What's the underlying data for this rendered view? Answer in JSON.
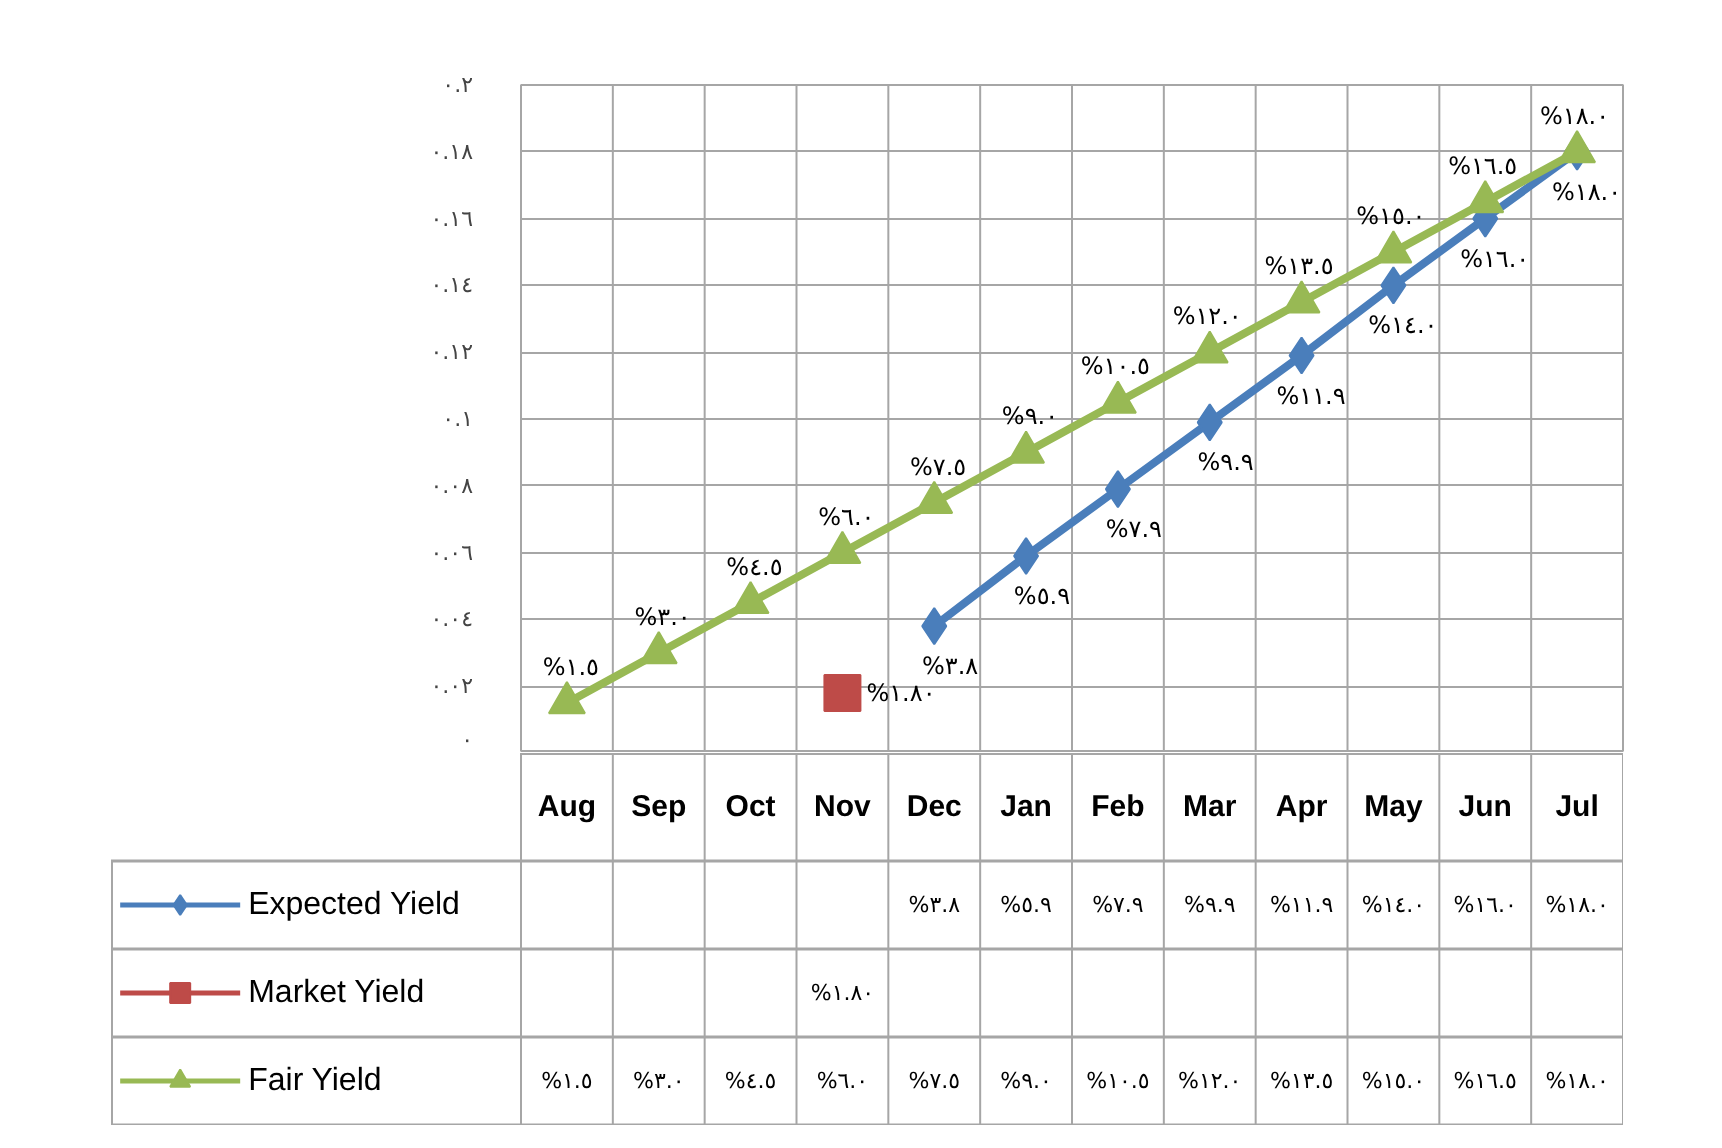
{
  "chart_data": {
    "type": "line",
    "categories": [
      "Aug",
      "Sep",
      "Oct",
      "Nov",
      "Dec",
      "Jan",
      "Feb",
      "Mar",
      "Apr",
      "May",
      "Jun",
      "Jul"
    ],
    "ylim": [
      0,
      0.2
    ],
    "yticks": [
      {
        "value": 0,
        "label": "٠"
      },
      {
        "value": 0.02,
        "label": "٠.٠٢"
      },
      {
        "value": 0.04,
        "label": "٠.٠٤"
      },
      {
        "value": 0.06,
        "label": "٠.٠٦"
      },
      {
        "value": 0.08,
        "label": "٠.٠٨"
      },
      {
        "value": 0.1,
        "label": "٠.١"
      },
      {
        "value": 0.12,
        "label": "٠.١٢"
      },
      {
        "value": 0.14,
        "label": "٠.١٤"
      },
      {
        "value": 0.16,
        "label": "٠.١٦"
      },
      {
        "value": 0.18,
        "label": "٠.١٨"
      },
      {
        "value": 0.2,
        "label": "٠.٢"
      }
    ],
    "grid": true,
    "legend": "bottom",
    "series": [
      {
        "name": "Expected Yield",
        "color": "#4a7ebb",
        "marker": "diamond",
        "values": [
          null,
          null,
          null,
          null,
          0.038,
          0.059,
          0.079,
          0.099,
          0.119,
          0.14,
          0.16,
          0.18
        ],
        "value_labels": [
          null,
          null,
          null,
          null,
          "%٣.٨",
          "%٥.٩",
          "%٧.٩",
          "%٩.٩",
          "%١١.٩",
          "%١٤.٠",
          "%١٦.٠",
          "%١٨.٠"
        ]
      },
      {
        "name": "Market Yield",
        "color": "#be4b48",
        "marker": "square",
        "values": [
          null,
          null,
          null,
          0.018,
          null,
          null,
          null,
          null,
          null,
          null,
          null,
          null
        ],
        "value_labels": [
          null,
          null,
          null,
          "%١.٨٠",
          null,
          null,
          null,
          null,
          null,
          null,
          null,
          null
        ]
      },
      {
        "name": "Fair Yield",
        "color": "#98b954",
        "marker": "triangle",
        "values": [
          0.015,
          0.03,
          0.045,
          0.06,
          0.075,
          0.09,
          0.105,
          0.12,
          0.135,
          0.15,
          0.165,
          0.18
        ],
        "value_labels": [
          "%١.٥",
          "%٣.٠",
          "%٤.٥",
          "%٦.٠",
          "%٧.٥",
          "%٩.٠",
          "%١٠.٥",
          "%١٢.٠",
          "%١٣.٥",
          "%١٥.٠",
          "%١٦.٥",
          "%١٨.٠"
        ]
      }
    ]
  }
}
